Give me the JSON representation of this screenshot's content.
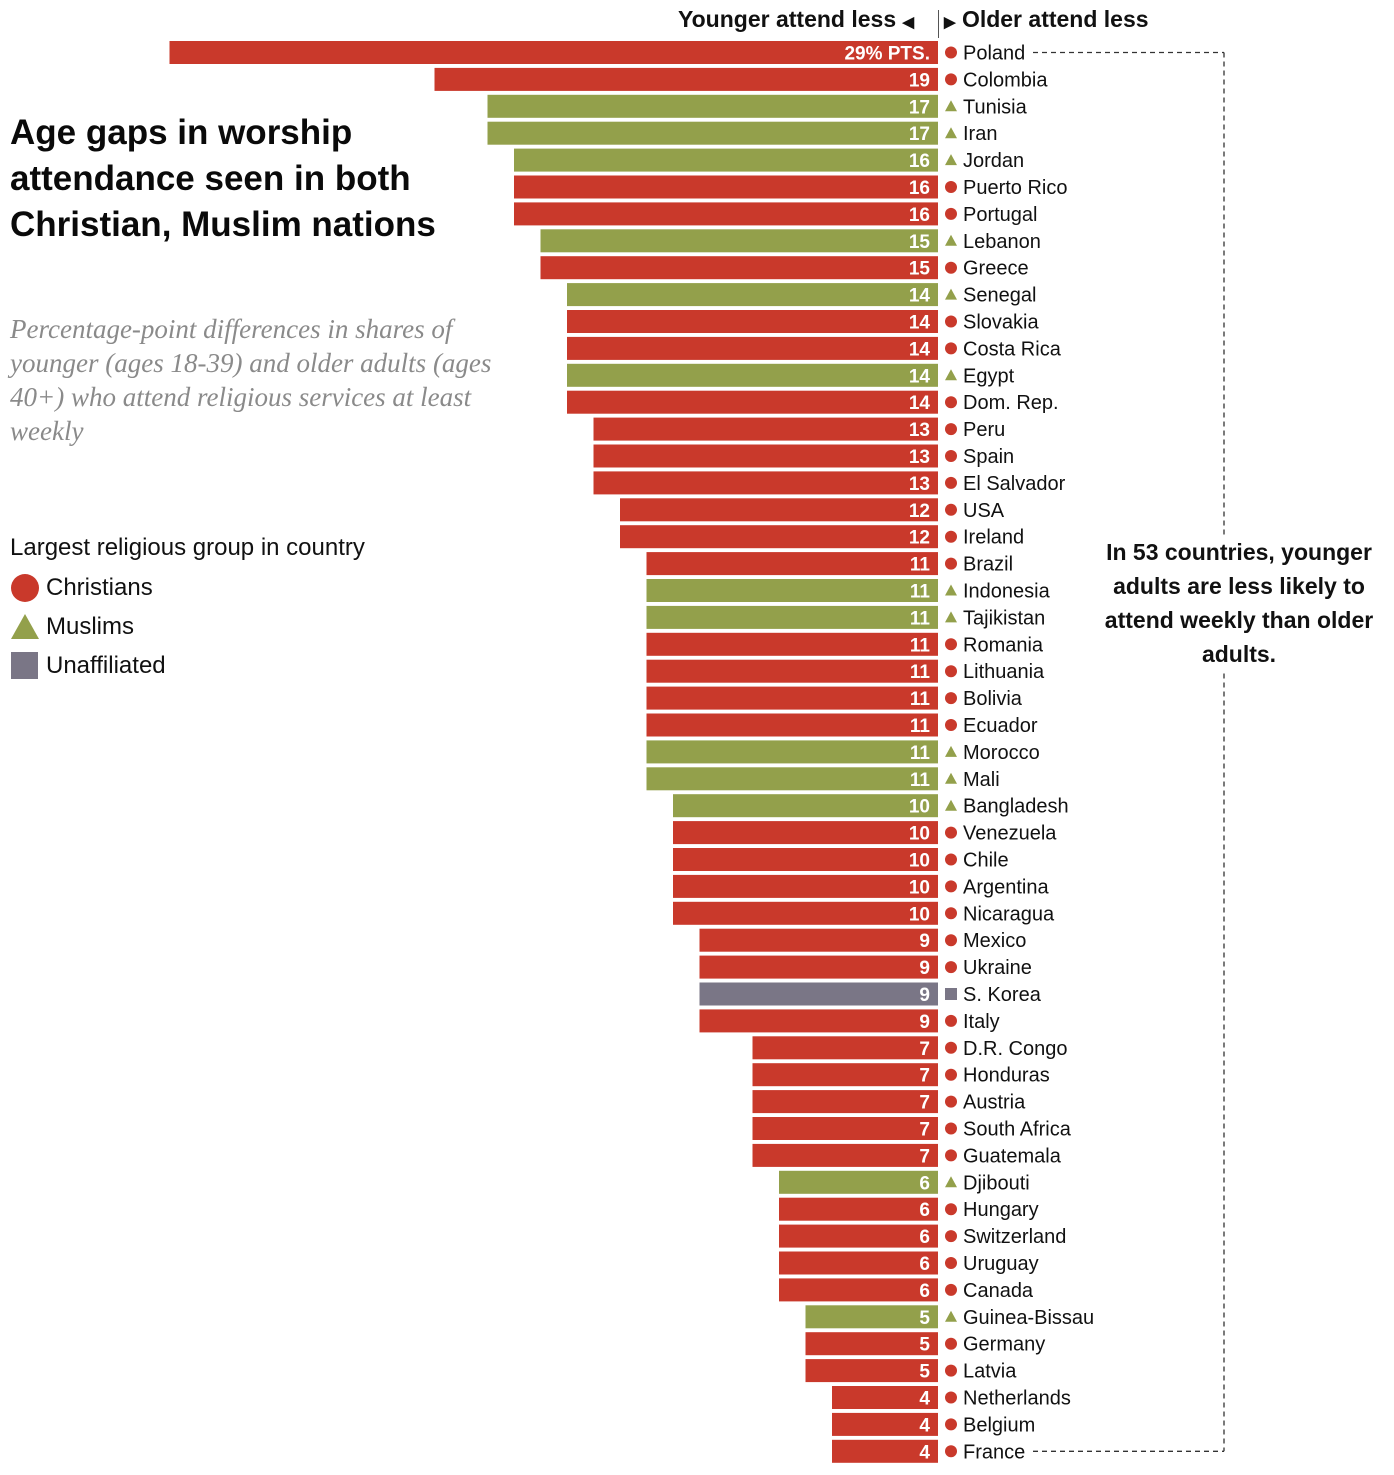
{
  "title": "Age gaps in worship attendance seen in both Christian, Muslim nations",
  "subtitle": "Percentage-point differences in shares of younger (ages 18-39) and older adults (ages 40+) who attend religious services at least weekly",
  "header": {
    "left": "Younger attend less",
    "right": "Older attend less"
  },
  "legend": {
    "title": "Largest religious group in country",
    "items": [
      {
        "label": "Christians",
        "shape": "circle",
        "color": "#c9392b"
      },
      {
        "label": "Muslims",
        "shape": "triangle",
        "color": "#93a04b"
      },
      {
        "label": "Unaffiliated",
        "shape": "square",
        "color": "#7a7686"
      }
    ]
  },
  "annotation": "In 53 countries, younger adults are less likely to attend weekly than older adults.",
  "colors": {
    "Christian": "#c9392b",
    "Muslim": "#93a04b",
    "Unaffiliated": "#7a7686"
  },
  "chart_data": {
    "type": "bar",
    "orientation": "horizontal",
    "first_value_label": "29% PTS.",
    "categories": [
      "Poland",
      "Colombia",
      "Tunisia",
      "Iran",
      "Jordan",
      "Puerto Rico",
      "Portugal",
      "Lebanon",
      "Greece",
      "Senegal",
      "Slovakia",
      "Costa Rica",
      "Egypt",
      "Dom. Rep.",
      "Peru",
      "Spain",
      "El Salvador",
      "USA",
      "Ireland",
      "Brazil",
      "Indonesia",
      "Tajikistan",
      "Romania",
      "Lithuania",
      "Bolivia",
      "Ecuador",
      "Morocco",
      "Mali",
      "Bangladesh",
      "Venezuela",
      "Chile",
      "Argentina",
      "Nicaragua",
      "Mexico",
      "Ukraine",
      "S. Korea",
      "Italy",
      "D.R. Congo",
      "Honduras",
      "Austria",
      "South Africa",
      "Guatemala",
      "Djibouti",
      "Hungary",
      "Switzerland",
      "Uruguay",
      "Canada",
      "Guinea-Bissau",
      "Germany",
      "Latvia",
      "Netherlands",
      "Belgium",
      "France"
    ],
    "values": [
      29,
      19,
      17,
      17,
      16,
      16,
      16,
      15,
      15,
      14,
      14,
      14,
      14,
      14,
      13,
      13,
      13,
      12,
      12,
      11,
      11,
      11,
      11,
      11,
      11,
      11,
      11,
      11,
      10,
      10,
      10,
      10,
      10,
      9,
      9,
      9,
      9,
      7,
      7,
      7,
      7,
      7,
      6,
      6,
      6,
      6,
      6,
      5,
      5,
      5,
      4,
      4,
      4
    ],
    "groups": [
      "Christian",
      "Christian",
      "Muslim",
      "Muslim",
      "Muslim",
      "Christian",
      "Christian",
      "Muslim",
      "Christian",
      "Muslim",
      "Christian",
      "Christian",
      "Muslim",
      "Christian",
      "Christian",
      "Christian",
      "Christian",
      "Christian",
      "Christian",
      "Christian",
      "Muslim",
      "Muslim",
      "Christian",
      "Christian",
      "Christian",
      "Christian",
      "Muslim",
      "Muslim",
      "Muslim",
      "Christian",
      "Christian",
      "Christian",
      "Christian",
      "Christian",
      "Christian",
      "Unaffiliated",
      "Christian",
      "Christian",
      "Christian",
      "Christian",
      "Christian",
      "Christian",
      "Muslim",
      "Christian",
      "Christian",
      "Christian",
      "Christian",
      "Muslim",
      "Christian",
      "Christian",
      "Christian",
      "Christian",
      "Christian"
    ]
  }
}
